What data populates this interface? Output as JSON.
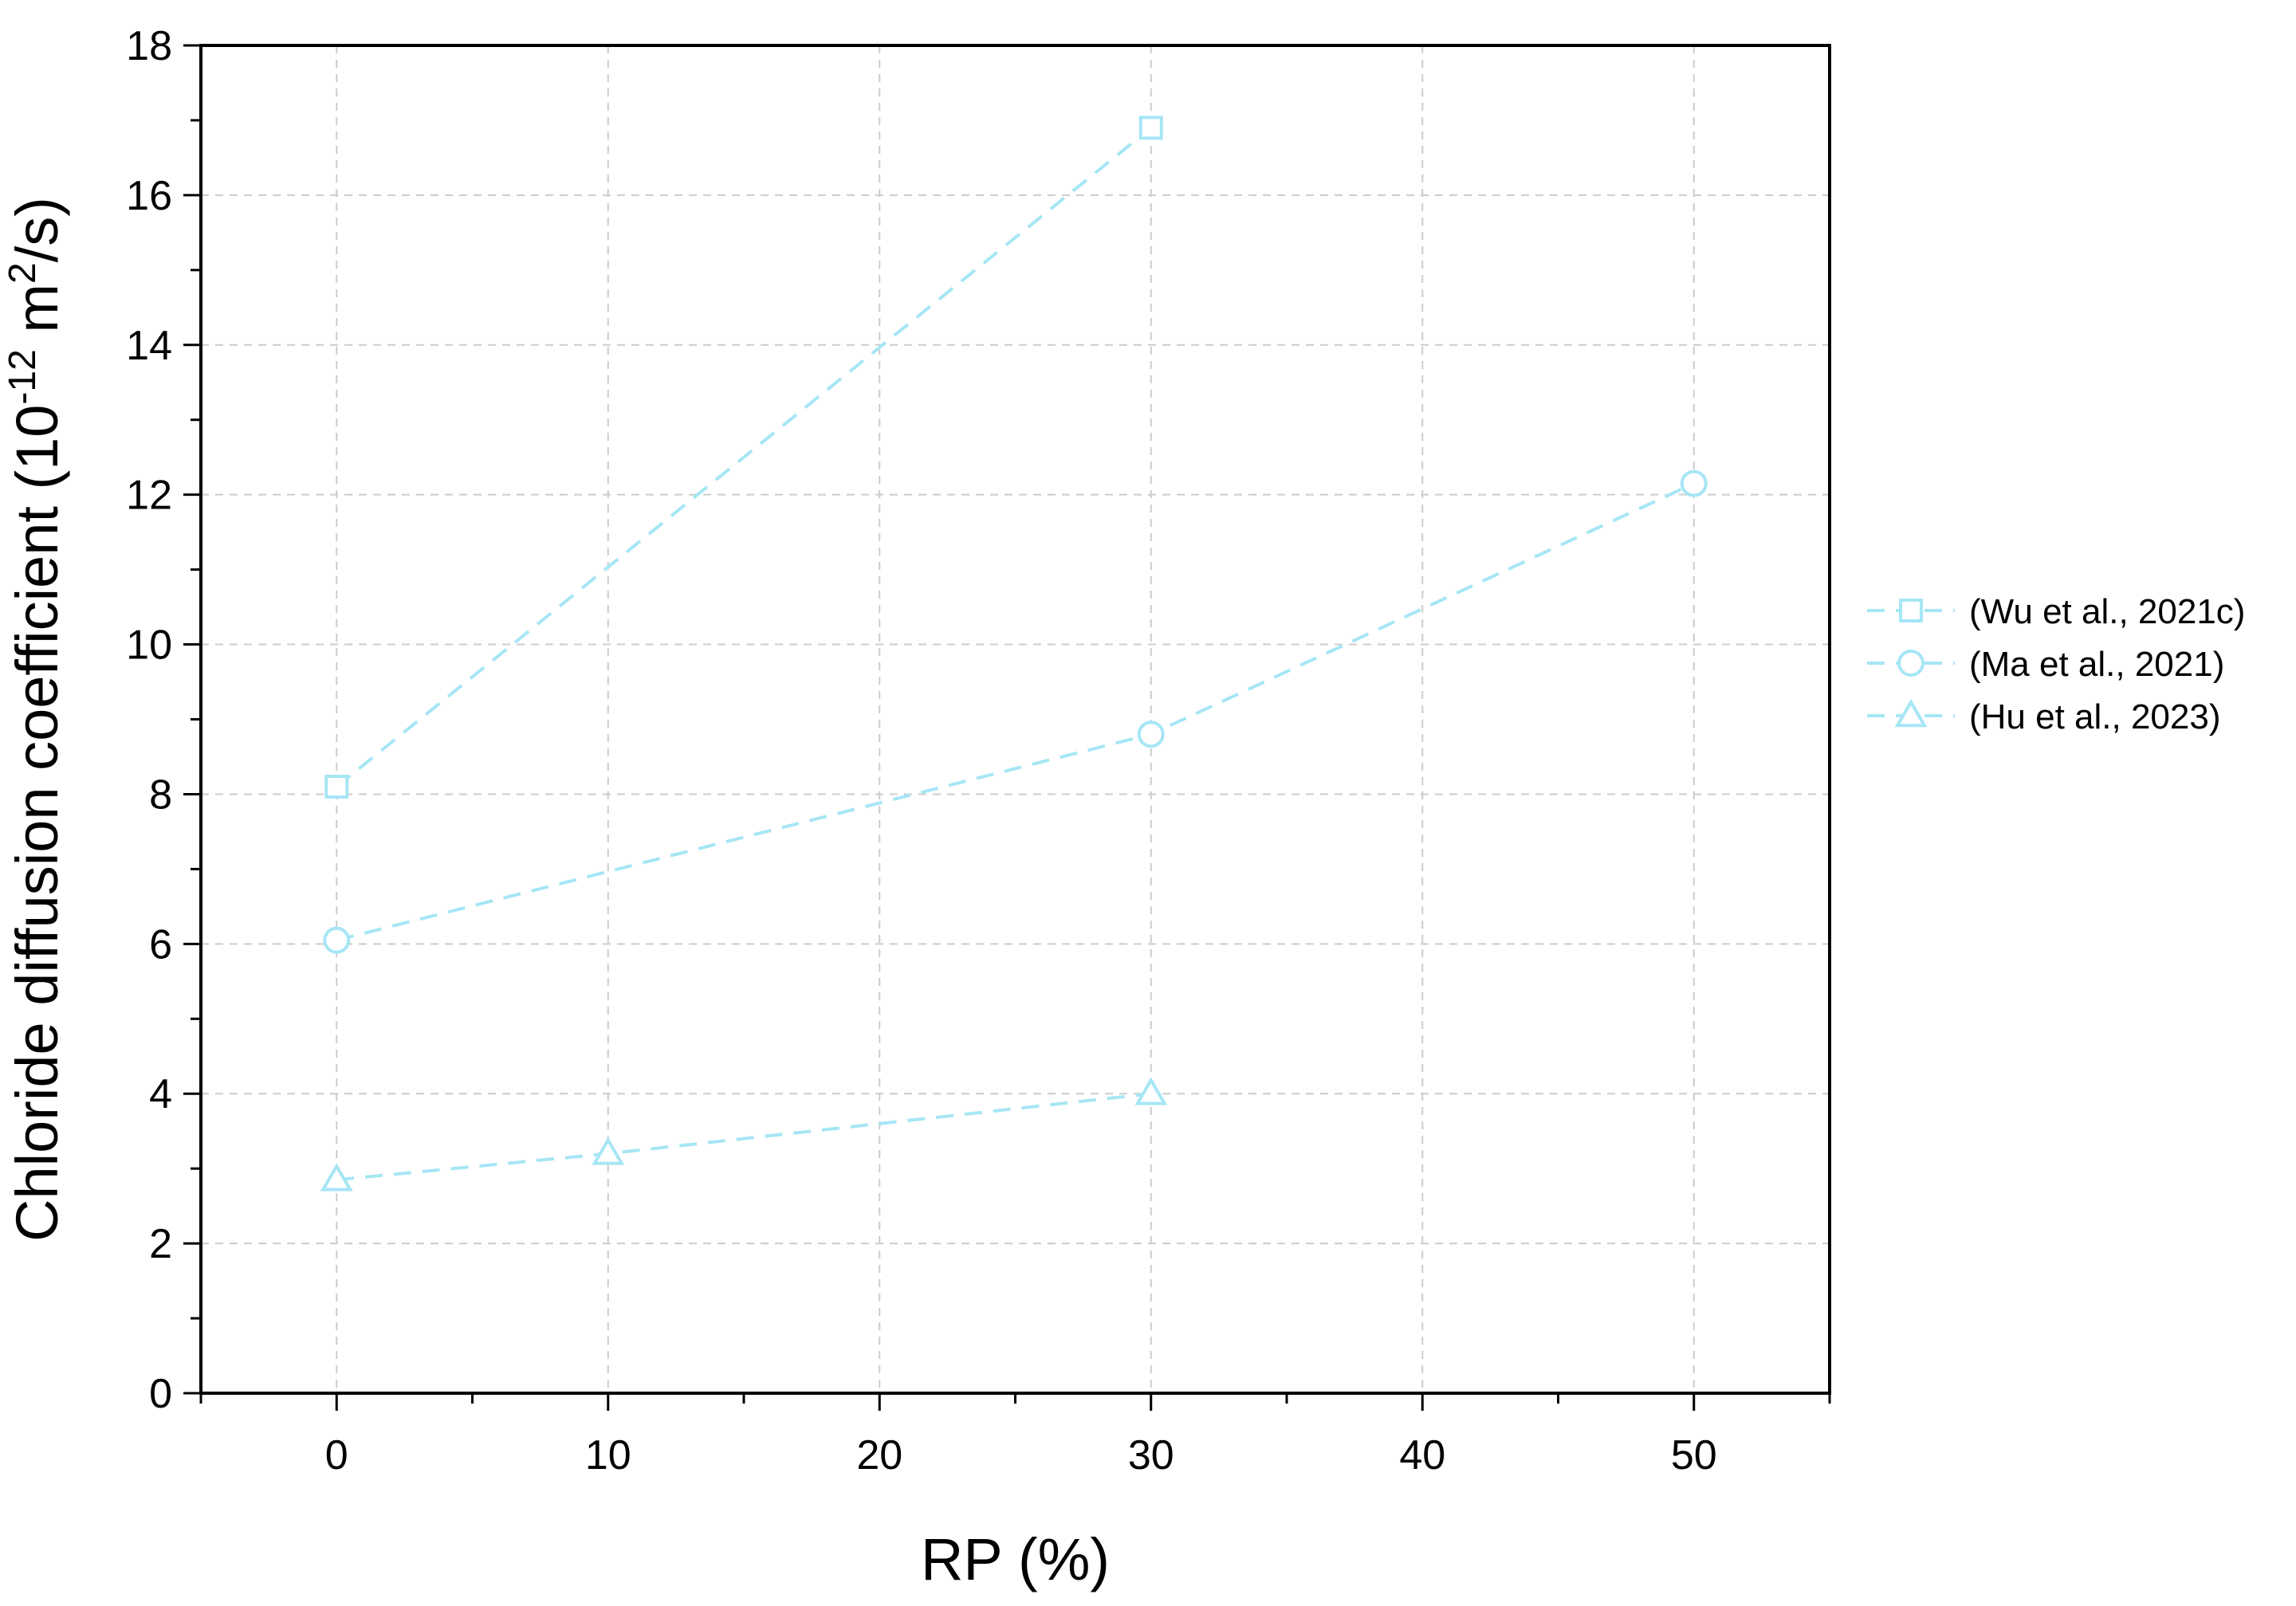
{
  "chart_data": {
    "type": "line",
    "title": "",
    "xlabel": "RP (%)",
    "ylabel_parts": [
      "Chloride diffusion coefficient (10",
      "-12",
      " m",
      "2",
      "/s)"
    ],
    "xlim": [
      -5,
      55
    ],
    "ylim": [
      0,
      18
    ],
    "xticks": [
      0,
      10,
      20,
      30,
      40,
      50
    ],
    "yticks": [
      0,
      2,
      4,
      6,
      8,
      10,
      12,
      14,
      16,
      18
    ],
    "grid": true,
    "legend_position": "right",
    "series": [
      {
        "name": "(Wu et al., 2021c)",
        "marker": "square",
        "x": [
          0,
          30
        ],
        "y": [
          8.1,
          16.9
        ]
      },
      {
        "name": "(Ma et al., 2021)",
        "marker": "circle",
        "x": [
          0,
          30,
          50
        ],
        "y": [
          6.05,
          8.8,
          12.15
        ]
      },
      {
        "name": "(Hu et al., 2023)",
        "marker": "triangle",
        "x": [
          0,
          10,
          30
        ],
        "y": [
          2.85,
          3.2,
          4.0
        ]
      }
    ],
    "colors": {
      "series": "#a6e6f5",
      "axis": "#000000",
      "grid": "#cccccc"
    }
  }
}
